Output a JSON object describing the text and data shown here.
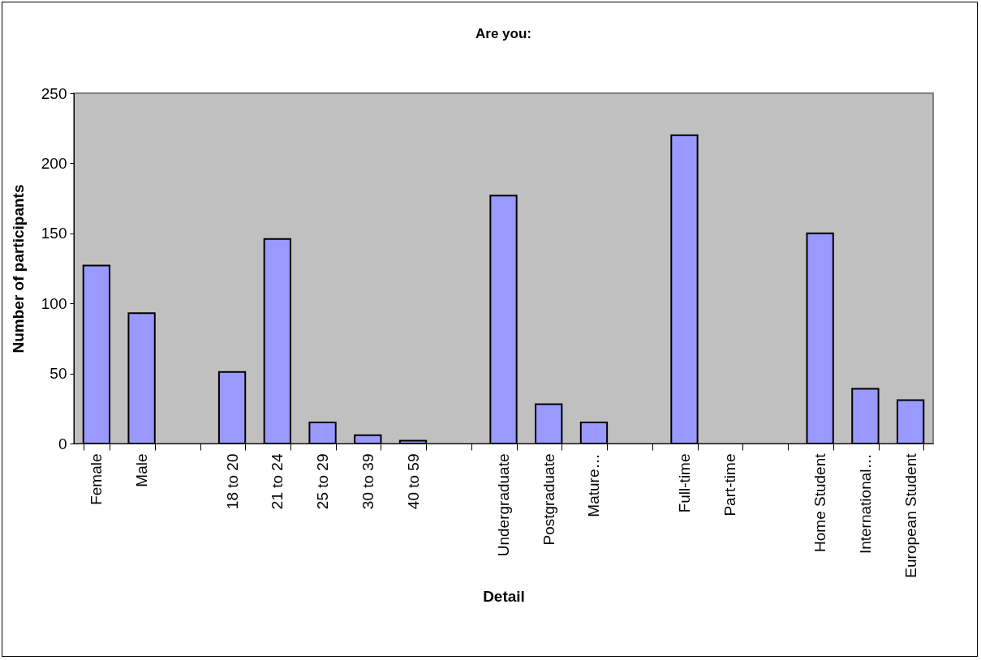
{
  "chart_data": {
    "type": "bar",
    "title": "Are you:",
    "xlabel": "Detail",
    "ylabel": "Number of participants",
    "categories": [
      "Female",
      "Male",
      null,
      "18 to 20",
      "21 to 24",
      "25 to 29",
      "30 to 39",
      "40 to 59",
      null,
      "Undergraduate",
      "Postgraduate",
      "Mature…",
      null,
      "Full-time",
      "Part-time",
      null,
      "Home Student",
      "International…",
      "European Student"
    ],
    "values": [
      127,
      93,
      null,
      51,
      146,
      15,
      6,
      2,
      null,
      177,
      28,
      15,
      null,
      220,
      0,
      null,
      150,
      39,
      31
    ],
    "color": "#9999ff",
    "ylim": [
      0,
      250
    ],
    "yticks": [
      0,
      50,
      100,
      150,
      200,
      250
    ],
    "grid": false,
    "legend": false
  }
}
